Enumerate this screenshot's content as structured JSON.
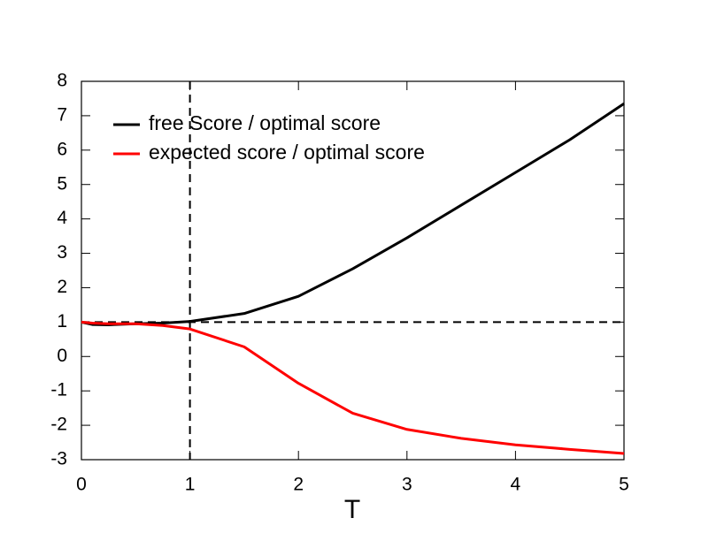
{
  "chart_data": {
    "type": "line",
    "xlabel": "T",
    "x": [
      0,
      0.1,
      0.25,
      0.5,
      0.75,
      1,
      1.5,
      2,
      2.5,
      3,
      3.5,
      4,
      4.5,
      5
    ],
    "series": [
      {
        "name": "free Score / optimal score",
        "color": "#000000",
        "values": [
          1,
          0.93,
          0.92,
          0.95,
          0.97,
          1.02,
          1.25,
          1.75,
          2.55,
          3.45,
          4.4,
          5.35,
          6.3,
          7.35
        ]
      },
      {
        "name": "expected score / optimal score",
        "color": "#ff0000",
        "values": [
          1,
          0.97,
          0.95,
          0.95,
          0.9,
          0.8,
          0.28,
          -0.78,
          -1.65,
          -2.12,
          -2.38,
          -2.57,
          -2.7,
          -2.82
        ]
      }
    ],
    "xlim": [
      0,
      5
    ],
    "xticks": [
      0,
      1,
      2,
      3,
      4,
      5
    ],
    "ylim": [
      -3,
      8
    ],
    "yticks": [
      -3,
      -2,
      -1,
      0,
      1,
      2,
      3,
      4,
      5,
      6,
      7,
      8
    ],
    "hlines": [
      1
    ],
    "vlines": [
      1
    ],
    "legend": "upper left",
    "grid": false
  }
}
